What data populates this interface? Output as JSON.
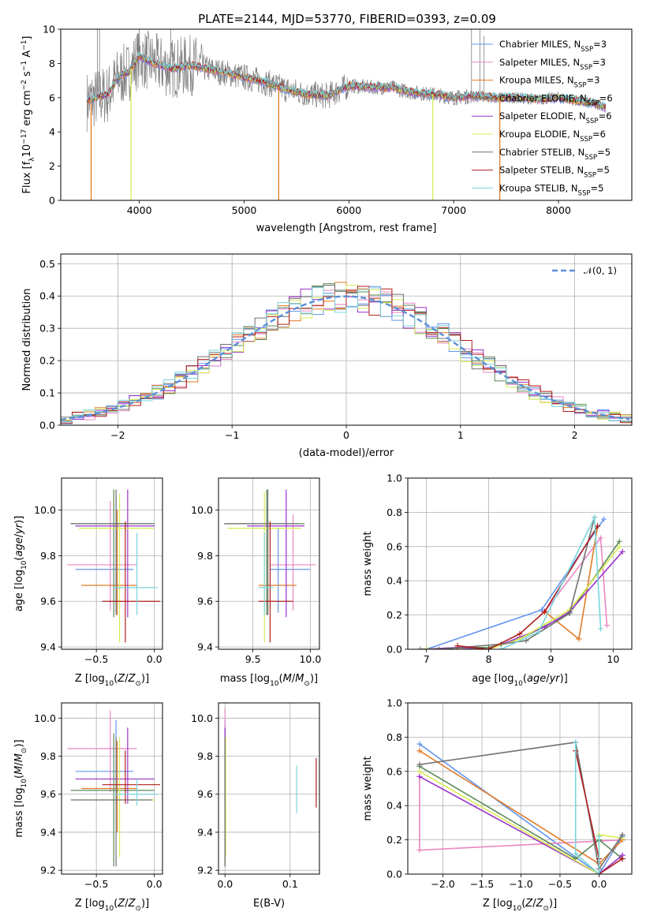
{
  "figure": {
    "title": "PLATE=2144, MJD=53770, FIBERID=0393, z=0.09"
  },
  "models": [
    {
      "key": "cm",
      "label": "Chabrier MILES, N",
      "sub": "SSP",
      "suffix": "=3",
      "color": "#6495ED"
    },
    {
      "key": "sm",
      "label": "Salpeter MILES, N",
      "sub": "SSP",
      "suffix": "=3",
      "color": "#E987C2"
    },
    {
      "key": "km",
      "label": "Kroupa MILES, N",
      "sub": "SSP",
      "suffix": "=3",
      "color": "#E07B26"
    },
    {
      "key": "ce",
      "label": "Chabrier ELODIE, N",
      "sub": "SSP",
      "suffix": "=6",
      "color": "#5A8A5A"
    },
    {
      "key": "se",
      "label": "Salpeter ELODIE, N",
      "sub": "SSP",
      "suffix": "=6",
      "color": "#9932CC"
    },
    {
      "key": "ke",
      "label": "Kroupa ELODIE, N",
      "sub": "SSP",
      "suffix": "=6",
      "color": "#D8EC52"
    },
    {
      "key": "cs",
      "label": "Chabrier STELIB, N",
      "sub": "SSP",
      "suffix": "=5",
      "color": "#707070"
    },
    {
      "key": "ss",
      "label": "Salpeter STELIB, N",
      "sub": "SSP",
      "suffix": "=5",
      "color": "#B01E1E"
    },
    {
      "key": "ks",
      "label": "Kroupa STELIB, N",
      "sub": "SSP",
      "suffix": "=5",
      "color": "#79D4DC"
    }
  ],
  "chart_data": [
    {
      "id": "spectrum",
      "type": "line",
      "title": "PLATE=2144, MJD=53770, FIBERID=0393, z=0.09",
      "xlabel": "wavelength [Angstrom, rest frame]",
      "ylabel": "Flux [f",
      "xlim": [
        3250,
        8700
      ],
      "ylim": [
        0,
        10
      ],
      "xticks": [
        4000,
        5000,
        6000,
        7000,
        8000
      ],
      "yticks": [
        0,
        2,
        4,
        6,
        8,
        10
      ],
      "continuum": [
        [
          3500,
          5.8
        ],
        [
          3600,
          6.0
        ],
        [
          3700,
          6.2
        ],
        [
          3800,
          7.2
        ],
        [
          3900,
          7.5
        ],
        [
          4000,
          8.4
        ],
        [
          4100,
          8.1
        ],
        [
          4200,
          7.9
        ],
        [
          4300,
          7.7
        ],
        [
          4500,
          7.9
        ],
        [
          4700,
          7.6
        ],
        [
          5000,
          7.2
        ],
        [
          5200,
          6.9
        ],
        [
          5400,
          6.5
        ],
        [
          5600,
          6.2
        ],
        [
          5800,
          6.1
        ],
        [
          6000,
          6.7
        ],
        [
          6200,
          6.6
        ],
        [
          6400,
          6.6
        ],
        [
          6600,
          6.3
        ],
        [
          6800,
          6.2
        ],
        [
          7000,
          6.0
        ],
        [
          7200,
          6.1
        ],
        [
          7400,
          6.0
        ],
        [
          7600,
          6.0
        ],
        [
          7800,
          5.9
        ],
        [
          8000,
          6.0
        ],
        [
          8200,
          5.8
        ],
        [
          8400,
          5.6
        ],
        [
          8450,
          5.4
        ]
      ],
      "dropouts": [
        [
          3540,
          "#E07B26"
        ],
        [
          3920,
          "#D8EC52"
        ],
        [
          5330,
          "#E07B26"
        ],
        [
          6800,
          "#D8EC52"
        ],
        [
          7440,
          "#E07B26"
        ]
      ],
      "legend": "upper-right"
    },
    {
      "id": "residuals",
      "type": "line",
      "xlabel": "(data-model)/error",
      "ylabel": "Normed distribution",
      "xlim": [
        -2.5,
        2.5
      ],
      "ylim": [
        0,
        0.53
      ],
      "xticks": [
        -2,
        -1,
        0,
        1,
        2
      ],
      "yticks": [
        0.0,
        0.1,
        0.2,
        0.3,
        0.4,
        0.5
      ],
      "gaussian_label": "𝒩(0, 1)",
      "bin_width": 0.1
    },
    {
      "id": "age_vs_Z",
      "type": "errorbar",
      "xlabel": "Z [log",
      "ylabel": "age  [log",
      "xlim": [
        -0.8,
        0.07
      ],
      "ylim": [
        9.39,
        10.14
      ],
      "xticks": [
        -0.5,
        0.0
      ],
      "yticks": [
        9.4,
        9.6,
        9.8,
        10.0
      ],
      "points": [
        {
          "m": "cm",
          "x": -0.33,
          "y": 9.74,
          "xl": -0.68,
          "xh": -0.18,
          "yl": 9.55,
          "yh": 10.06
        },
        {
          "m": "sm",
          "x": -0.38,
          "y": 9.76,
          "xl": -0.75,
          "xh": -0.15,
          "yl": 9.56,
          "yh": 10.04
        },
        {
          "m": "km",
          "x": -0.32,
          "y": 9.67,
          "xl": -0.63,
          "xh": -0.15,
          "yl": 9.54,
          "yh": 10.0
        },
        {
          "m": "ce",
          "x": -0.35,
          "y": 9.94,
          "xl": -0.72,
          "xh": 0.0,
          "yl": 9.53,
          "yh": 10.09
        },
        {
          "m": "se",
          "x": -0.23,
          "y": 9.93,
          "xl": -0.68,
          "xh": 0.0,
          "yl": 9.53,
          "yh": 10.09
        },
        {
          "m": "ke",
          "x": -0.3,
          "y": 9.92,
          "xl": -0.65,
          "xh": 0.0,
          "yl": 9.42,
          "yh": 10.07
        },
        {
          "m": "cs",
          "x": -0.33,
          "y": 9.94,
          "xl": -0.72,
          "xh": -0.02,
          "yl": 9.54,
          "yh": 10.09
        },
        {
          "m": "ss",
          "x": -0.25,
          "y": 9.6,
          "xl": -0.45,
          "xh": 0.05,
          "yl": 9.42,
          "yh": 9.95
        },
        {
          "m": "ks",
          "x": -0.15,
          "y": 9.66,
          "xl": -0.35,
          "xh": 0.03,
          "yl": 9.54,
          "yh": 9.9
        }
      ]
    },
    {
      "id": "age_vs_mass",
      "type": "errorbar",
      "xlabel": "mass [log",
      "ylabel": "",
      "xlim": [
        9.2,
        10.08
      ],
      "ylim": [
        9.39,
        10.14
      ],
      "xticks": [
        9.5,
        10.0
      ],
      "yticks": [
        9.4,
        9.6,
        9.8,
        10.0
      ],
      "points": [
        {
          "m": "cm",
          "x": 9.72,
          "y": 9.74,
          "xl": 9.65,
          "xh": 10.0,
          "yl": 9.55,
          "yh": 9.92
        },
        {
          "m": "sm",
          "x": 9.85,
          "y": 9.76,
          "xl": 9.65,
          "xh": 10.05,
          "yl": 9.56,
          "yh": 9.98
        },
        {
          "m": "km",
          "x": 9.63,
          "y": 9.67,
          "xl": 9.55,
          "xh": 9.88,
          "yl": 9.54,
          "yh": 9.96
        },
        {
          "m": "ce",
          "x": 9.62,
          "y": 9.94,
          "xl": 9.25,
          "xh": 9.95,
          "yl": 9.54,
          "yh": 10.09
        },
        {
          "m": "se",
          "x": 9.79,
          "y": 9.93,
          "xl": 9.45,
          "xh": 9.95,
          "yl": 9.53,
          "yh": 10.09
        },
        {
          "m": "ke",
          "x": 9.6,
          "y": 9.92,
          "xl": 9.28,
          "xh": 9.92,
          "yl": 9.42,
          "yh": 10.08
        },
        {
          "m": "cs",
          "x": 9.63,
          "y": 9.94,
          "xl": 9.25,
          "xh": 9.9,
          "yl": 9.54,
          "yh": 10.09
        },
        {
          "m": "ss",
          "x": 9.65,
          "y": 9.6,
          "xl": 9.55,
          "xh": 9.85,
          "yl": 9.42,
          "yh": 9.95
        },
        {
          "m": "ks",
          "x": 9.6,
          "y": 9.66,
          "xl": 9.55,
          "xh": 9.68,
          "yl": 9.54,
          "yh": 9.9
        }
      ]
    },
    {
      "id": "mass_vs_Z",
      "type": "errorbar",
      "xlabel": "Z [log",
      "ylabel": "mass [log",
      "xlim": [
        -0.8,
        0.07
      ],
      "ylim": [
        9.18,
        10.08
      ],
      "xticks": [
        -0.5,
        0.0
      ],
      "yticks": [
        9.2,
        9.4,
        9.6,
        9.8,
        10.0
      ],
      "points": [
        {
          "m": "cm",
          "x": -0.33,
          "y": 9.72,
          "xl": -0.68,
          "xh": -0.18,
          "yl": 9.55,
          "yh": 9.99
        },
        {
          "m": "sm",
          "x": -0.38,
          "y": 9.84,
          "xl": -0.75,
          "xh": -0.15,
          "yl": 9.61,
          "yh": 10.04
        },
        {
          "m": "km",
          "x": -0.32,
          "y": 9.63,
          "xl": -0.63,
          "xh": -0.15,
          "yl": 9.4,
          "yh": 9.88
        },
        {
          "m": "ce",
          "x": -0.35,
          "y": 9.62,
          "xl": -0.72,
          "xh": 0.0,
          "yl": 9.22,
          "yh": 9.92
        },
        {
          "m": "se",
          "x": -0.23,
          "y": 9.68,
          "xl": -0.68,
          "xh": 0.0,
          "yl": 9.55,
          "yh": 9.95
        },
        {
          "m": "ke",
          "x": -0.3,
          "y": 9.57,
          "xl": -0.65,
          "xh": 0.0,
          "yl": 9.27,
          "yh": 9.9
        },
        {
          "m": "cs",
          "x": -0.33,
          "y": 9.57,
          "xl": -0.72,
          "xh": -0.02,
          "yl": 9.22,
          "yh": 9.9
        },
        {
          "m": "ss",
          "x": -0.25,
          "y": 9.65,
          "xl": -0.45,
          "xh": 0.05,
          "yl": 9.55,
          "yh": 9.83
        },
        {
          "m": "ks",
          "x": -0.15,
          "y": 9.6,
          "xl": -0.35,
          "xh": 0.03,
          "yl": 9.54,
          "yh": 9.68
        }
      ]
    },
    {
      "id": "mass_vs_ebv",
      "type": "errorbar",
      "xlabel": "E(B-V)",
      "ylabel": "",
      "xlim": [
        -0.01,
        0.145
      ],
      "ylim": [
        9.18,
        10.08
      ],
      "xticks": [
        0.0,
        0.1
      ],
      "yticks": [
        9.2,
        9.4,
        9.6,
        9.8,
        10.0
      ],
      "points": [
        {
          "m": "cm",
          "x": 0.0,
          "y": 9.72,
          "yl": 9.55,
          "yh": 9.99
        },
        {
          "m": "sm",
          "x": 0.0,
          "y": 9.84,
          "yl": 9.61,
          "yh": 10.05
        },
        {
          "m": "km",
          "x": 0.0,
          "y": 9.63,
          "yl": 9.4,
          "yh": 9.88
        },
        {
          "m": "ce",
          "x": 0.0,
          "y": 9.62,
          "yl": 9.22,
          "yh": 9.92
        },
        {
          "m": "se",
          "x": 0.0,
          "y": 9.68,
          "yl": 9.55,
          "yh": 9.95
        },
        {
          "m": "ke",
          "x": 0.001,
          "y": 9.57,
          "yl": 9.27,
          "yh": 9.9
        },
        {
          "m": "cs",
          "x": 0.0,
          "y": 9.57,
          "yl": 9.22,
          "yh": 9.9
        },
        {
          "m": "ss",
          "x": 0.14,
          "y": 9.65,
          "yl": 9.53,
          "yh": 9.79
        },
        {
          "m": "ks",
          "x": 0.11,
          "y": 9.62,
          "yl": 9.5,
          "yh": 9.75
        }
      ]
    },
    {
      "id": "weight_vs_age",
      "type": "line",
      "xlabel": "age  [log",
      "ylabel": "mass weight",
      "xlim": [
        6.7,
        10.3
      ],
      "ylim": [
        0,
        1
      ],
      "xticks": [
        7,
        8,
        9,
        10
      ],
      "yticks": [
        0.0,
        0.2,
        0.4,
        0.6,
        0.8,
        1.0
      ],
      "series": [
        {
          "m": "cm",
          "pts": [
            [
              7.0,
              0.0
            ],
            [
              8.85,
              0.23
            ],
            [
              9.85,
              0.76
            ]
          ]
        },
        {
          "m": "sm",
          "pts": [
            [
              8.9,
              0.22
            ],
            [
              9.8,
              0.65
            ],
            [
              9.9,
              0.14
            ]
          ]
        },
        {
          "m": "km",
          "pts": [
            [
              8.9,
              0.22
            ],
            [
              9.45,
              0.06
            ],
            [
              9.75,
              0.72
            ]
          ]
        },
        {
          "m": "ce",
          "pts": [
            [
              6.9,
              0.0
            ],
            [
              7.5,
              0.01
            ],
            [
              8.0,
              0.01
            ],
            [
              8.5,
              0.06
            ],
            [
              9.3,
              0.21
            ],
            [
              10.1,
              0.63
            ]
          ]
        },
        {
          "m": "se",
          "pts": [
            [
              7.0,
              0.0
            ],
            [
              7.5,
              0.01
            ],
            [
              8.0,
              0.0
            ],
            [
              8.5,
              0.07
            ],
            [
              8.9,
              0.13
            ],
            [
              9.3,
              0.22
            ],
            [
              10.15,
              0.57
            ]
          ]
        },
        {
          "m": "ke",
          "pts": [
            [
              7.0,
              0.0
            ],
            [
              8.0,
              0.0
            ],
            [
              8.5,
              0.06
            ],
            [
              9.3,
              0.23
            ],
            [
              10.1,
              0.6
            ]
          ]
        },
        {
          "m": "cs",
          "pts": [
            [
              7.2,
              0.0
            ],
            [
              8.2,
              0.03
            ],
            [
              8.6,
              0.05
            ],
            [
              9.3,
              0.21
            ],
            [
              9.7,
              0.77
            ]
          ]
        },
        {
          "m": "ss",
          "pts": [
            [
              7.5,
              0.02
            ],
            [
              8.0,
              0.0
            ],
            [
              8.5,
              0.09
            ],
            [
              8.9,
              0.22
            ],
            [
              9.75,
              0.72
            ]
          ]
        },
        {
          "m": "ks",
          "pts": [
            [
              8.2,
              0.0
            ],
            [
              8.8,
              0.1
            ],
            [
              9.7,
              0.77
            ],
            [
              9.8,
              0.12
            ]
          ]
        }
      ]
    },
    {
      "id": "weight_vs_Z",
      "type": "line",
      "xlabel": "Z [log",
      "ylabel": "mass weight",
      "xlim": [
        -2.45,
        0.42
      ],
      "ylim": [
        0,
        1
      ],
      "xticks": [
        -2.0,
        -1.5,
        -1.0,
        -0.5,
        0.0
      ],
      "yticks": [
        0.0,
        0.2,
        0.4,
        0.6,
        0.8,
        1.0
      ],
      "series": [
        {
          "m": "cm",
          "pts": [
            [
              -2.3,
              0.76
            ],
            [
              0.0,
              0.0
            ],
            [
              0.3,
              0.22
            ]
          ]
        },
        {
          "m": "sm",
          "pts": [
            [
              -2.3,
              0.57
            ],
            [
              -2.3,
              0.14
            ],
            [
              0.3,
              0.2
            ]
          ]
        },
        {
          "m": "km",
          "pts": [
            [
              -2.3,
              0.72
            ],
            [
              0.0,
              0.06
            ],
            [
              0.3,
              0.2
            ]
          ]
        },
        {
          "m": "ce",
          "pts": [
            [
              -2.3,
              0.63
            ],
            [
              -0.3,
              0.09
            ],
            [
              0.0,
              0.2
            ],
            [
              0.3,
              0.09
            ]
          ]
        },
        {
          "m": "se",
          "pts": [
            [
              -2.3,
              0.57
            ],
            [
              0.0,
              0.0
            ],
            [
              0.3,
              0.11
            ]
          ]
        },
        {
          "m": "ke",
          "pts": [
            [
              -2.3,
              0.6
            ],
            [
              0.0,
              0.0
            ],
            [
              0.0,
              0.23
            ],
            [
              0.3,
              0.21
            ]
          ]
        },
        {
          "m": "cs",
          "pts": [
            [
              -2.3,
              0.64
            ],
            [
              -0.3,
              0.77
            ],
            [
              0.0,
              0.03
            ],
            [
              0.3,
              0.23
            ]
          ]
        },
        {
          "m": "ss",
          "pts": [
            [
              -0.3,
              0.72
            ],
            [
              0.0,
              0.09
            ],
            [
              0.0,
              0.0
            ],
            [
              0.3,
              0.09
            ]
          ]
        },
        {
          "m": "ks",
          "pts": [
            [
              -0.3,
              0.77
            ],
            [
              -0.3,
              0.12
            ],
            [
              0.0,
              0.0
            ],
            [
              0.0,
              0.22
            ]
          ]
        }
      ]
    }
  ]
}
